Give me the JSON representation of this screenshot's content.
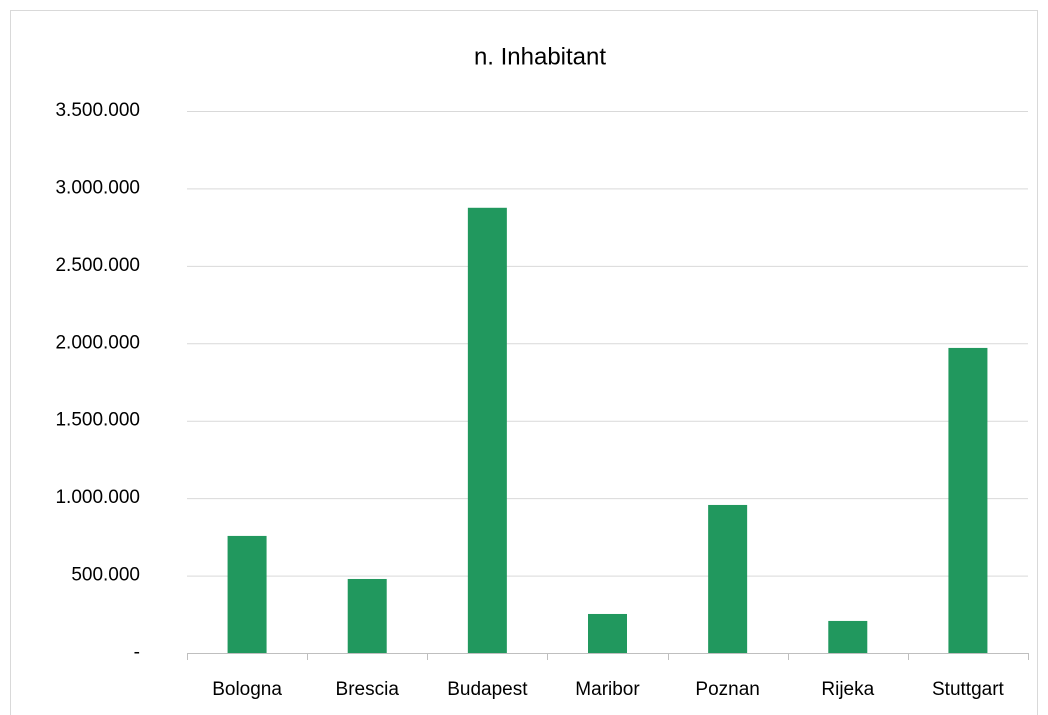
{
  "chart_data": {
    "type": "bar",
    "title": "n. Inhabitant",
    "categories": [
      "Bologna",
      "Brescia",
      "Budapest",
      "Maribor",
      "Poznan",
      "Rijeka",
      "Stuttgart"
    ],
    "values": [
      756000,
      478000,
      2875000,
      252000,
      956000,
      207000,
      1970000
    ],
    "color": "#21985e",
    "ylim": [
      0,
      3500000
    ],
    "yticks": [
      {
        "value": 0,
        "label": "-"
      },
      {
        "value": 500000,
        "label": "500.000"
      },
      {
        "value": 1000000,
        "label": "1.000.000"
      },
      {
        "value": 1500000,
        "label": "1.500.000"
      },
      {
        "value": 2000000,
        "label": "2.000.000"
      },
      {
        "value": 2500000,
        "label": "2.500.000"
      },
      {
        "value": 3000000,
        "label": "3.000.000"
      },
      {
        "value": 3500000,
        "label": "3.500.000"
      }
    ],
    "grid": true
  }
}
